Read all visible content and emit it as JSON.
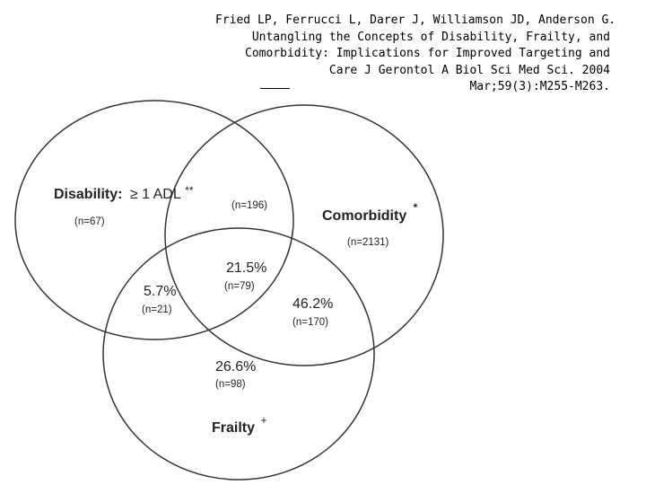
{
  "citation": {
    "lines": [
      "Fried LP, Ferrucci L, Darer J, Williamson JD, Anderson G.",
      "Untangling the Concepts of Disability, Frailty, and",
      "Comorbidity: Implications for Improved Targeting and",
      "Care J Gerontol A Biol Sci Med Sci. 2004",
      "Mar;59(3):M255-M263."
    ]
  },
  "venn": {
    "disability": {
      "label": "Disability:",
      "criterion": "≥ 1 ADL",
      "mark": "**",
      "n": "(n=67)"
    },
    "comorbidity": {
      "label": "Comorbidity",
      "mark": "*",
      "n": "(n=2131)"
    },
    "frailty": {
      "label": "Frailty",
      "mark": "+"
    },
    "disability_comorbidity": {
      "n": "(n=196)"
    },
    "disability_frailty": {
      "pct": "5.7%",
      "n": "(n=21)"
    },
    "all_three": {
      "pct": "21.5%",
      "n": "(n=79)"
    },
    "comorbidity_frailty": {
      "pct": "46.2%",
      "n": "(n=170)"
    },
    "frailty_only": {
      "pct": "26.6%",
      "n": "(n=98)"
    }
  }
}
